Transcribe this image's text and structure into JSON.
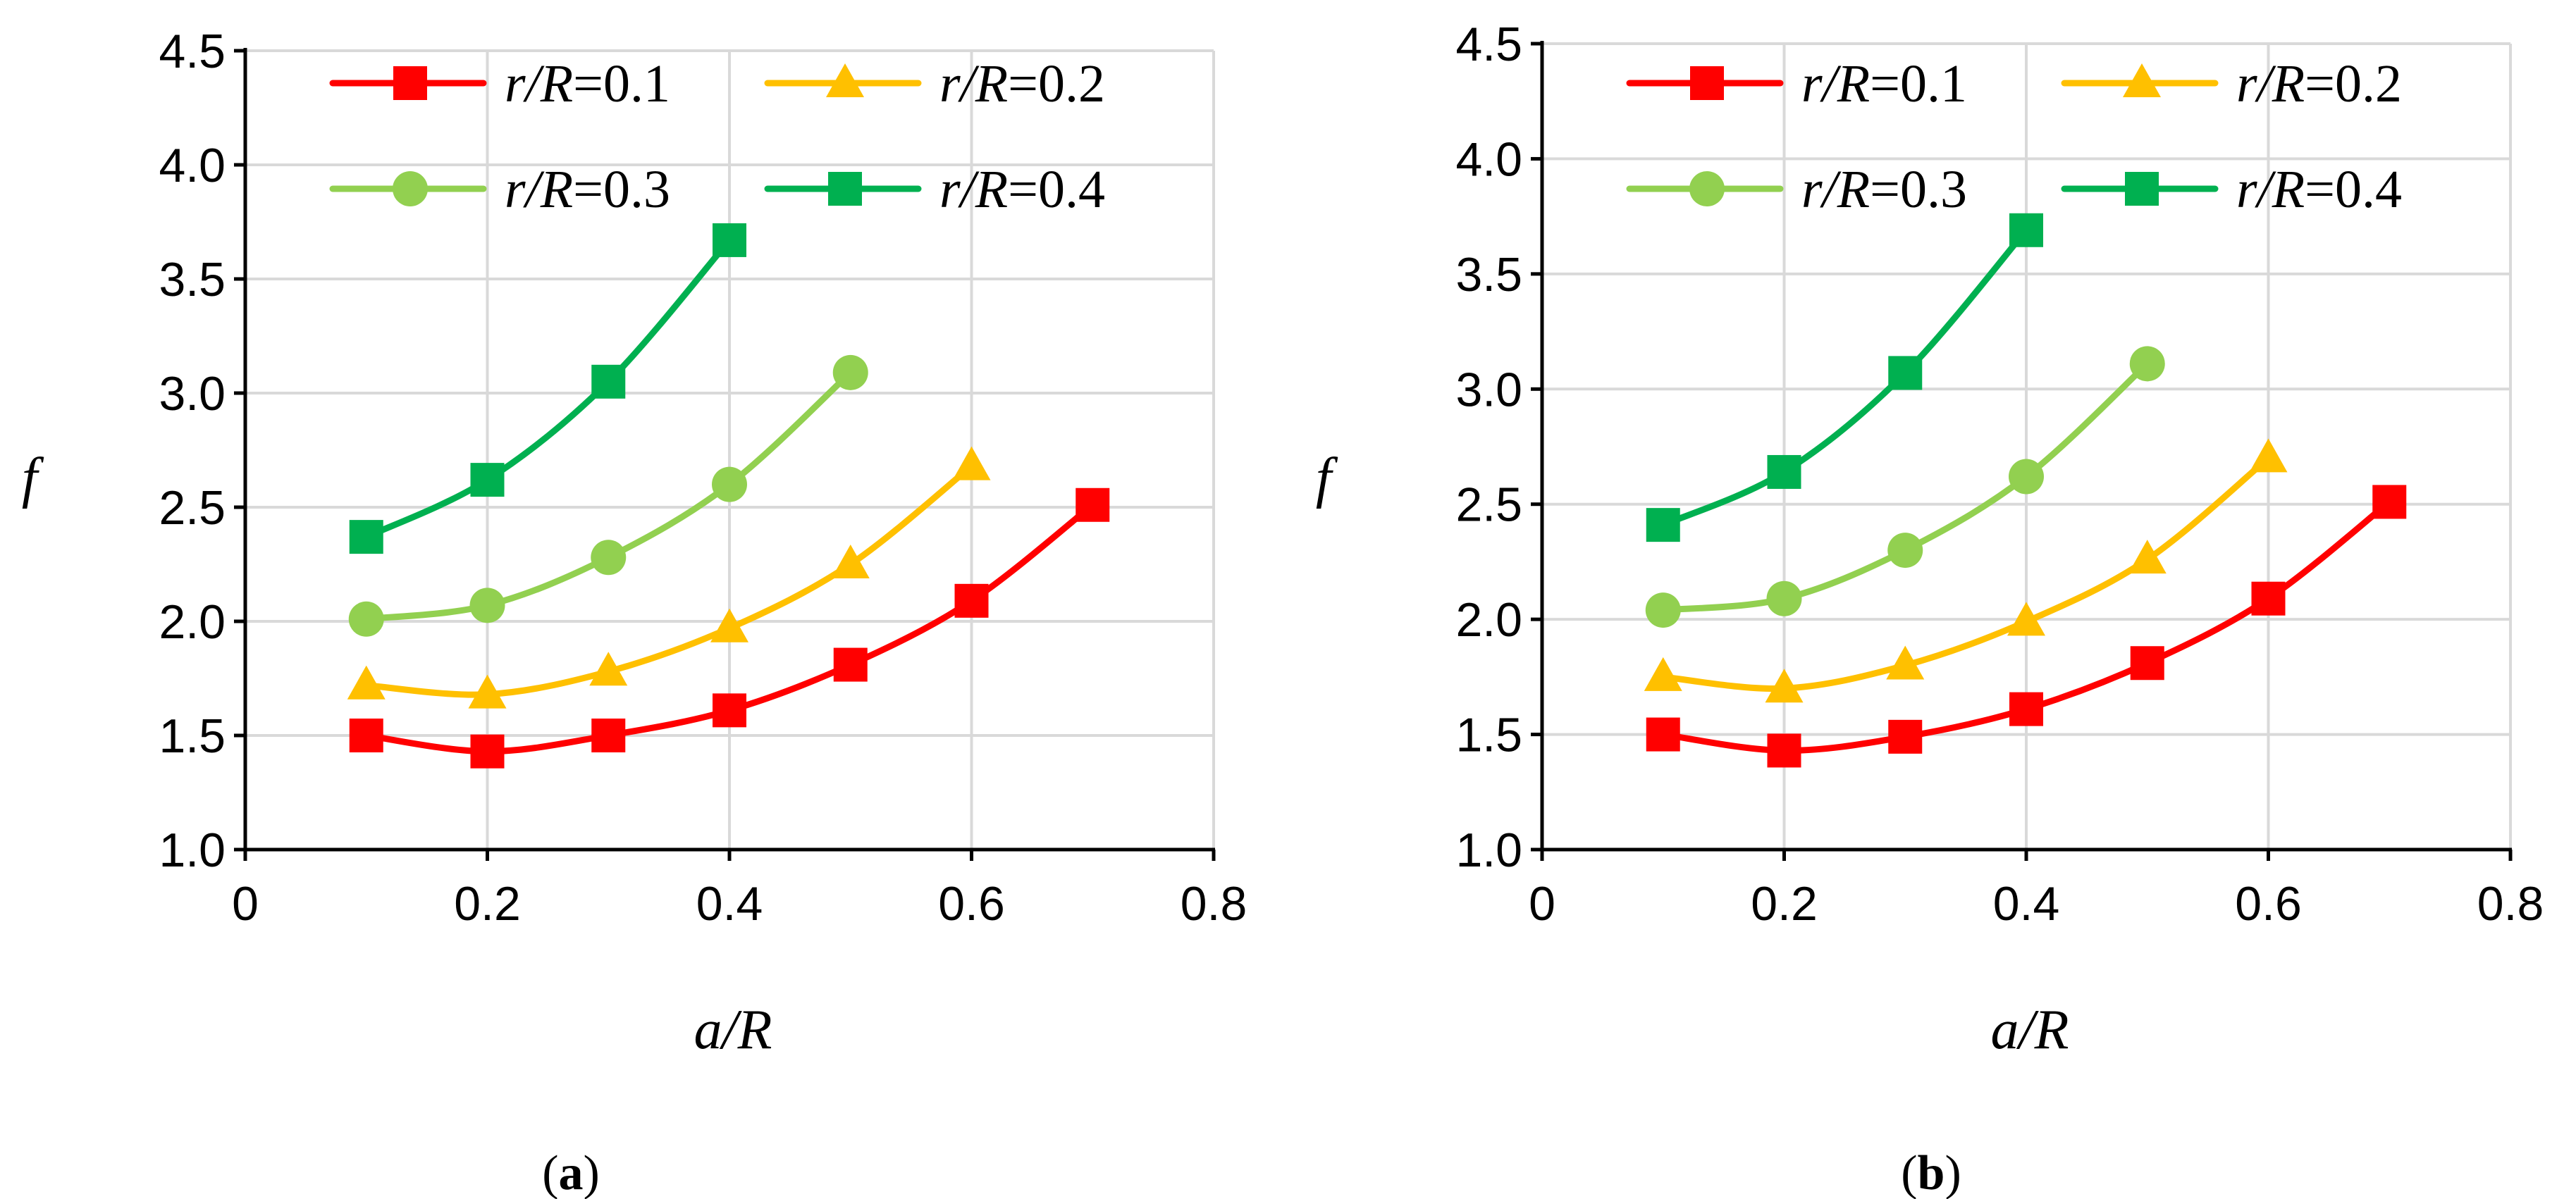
{
  "chart_data": [
    {
      "type": "line",
      "panel": "a",
      "caption_open": "(",
      "caption_letter": "a",
      "caption_close": ")",
      "xlabel": "a/R",
      "ylabel": "f",
      "xlim": [
        0,
        0.8
      ],
      "ylim": [
        1.0,
        4.5
      ],
      "xticks": [
        0,
        0.2,
        0.4,
        0.6,
        0.8
      ],
      "xtick_labels": [
        "0",
        "0.2",
        "0.4",
        "0.6",
        "0.8"
      ],
      "yticks": [
        1.0,
        1.5,
        2.0,
        2.5,
        3.0,
        3.5,
        4.0,
        4.5
      ],
      "ytick_labels": [
        "1.0",
        "1.5",
        "2.0",
        "2.5",
        "3.0",
        "3.5",
        "4.0",
        "4.5"
      ],
      "grid": true,
      "legend_position": "top",
      "series": [
        {
          "name": "r/R=0.1",
          "name_var": "r/R",
          "name_val": "=0.1",
          "color": "#ff0000",
          "marker": "square",
          "x": [
            0.1,
            0.2,
            0.3,
            0.4,
            0.5,
            0.6,
            0.7
          ],
          "y": [
            1.5,
            1.43,
            1.5,
            1.61,
            1.81,
            2.09,
            2.51
          ]
        },
        {
          "name": "r/R=0.2",
          "name_var": "r/R",
          "name_val": "=0.2",
          "color": "#ffc000",
          "marker": "triangle",
          "x": [
            0.1,
            0.2,
            0.3,
            0.4,
            0.5,
            0.6
          ],
          "y": [
            1.72,
            1.68,
            1.78,
            1.97,
            2.25,
            2.68
          ]
        },
        {
          "name": "r/R=0.3",
          "name_var": "r/R",
          "name_val": "=0.3",
          "color": "#92d050",
          "marker": "circle",
          "x": [
            0.1,
            0.2,
            0.3,
            0.4,
            0.5
          ],
          "y": [
            2.01,
            2.07,
            2.28,
            2.6,
            3.09
          ]
        },
        {
          "name": "r/R=0.4",
          "name_var": "r/R",
          "name_val": "=0.4",
          "color": "#00b050",
          "marker": "square",
          "x": [
            0.1,
            0.2,
            0.3,
            0.4
          ],
          "y": [
            2.37,
            2.62,
            3.05,
            3.67
          ]
        }
      ]
    },
    {
      "type": "line",
      "panel": "b",
      "caption_open": "(",
      "caption_letter": "b",
      "caption_close": ")",
      "xlabel": "a/R",
      "ylabel": "f",
      "xlim": [
        0,
        0.8
      ],
      "ylim": [
        1.0,
        4.5
      ],
      "xticks": [
        0,
        0.2,
        0.4,
        0.6,
        0.8
      ],
      "xtick_labels": [
        "0",
        "0.2",
        "0.4",
        "0.6",
        "0.8"
      ],
      "yticks": [
        1.0,
        1.5,
        2.0,
        2.5,
        3.0,
        3.5,
        4.0,
        4.5
      ],
      "ytick_labels": [
        "1.0",
        "1.5",
        "2.0",
        "2.5",
        "3.0",
        "3.5",
        "4.0",
        "4.5"
      ],
      "grid": true,
      "legend_position": "top",
      "series": [
        {
          "name": "r/R=0.1",
          "name_var": "r/R",
          "name_val": "=0.1",
          "color": "#ff0000",
          "marker": "square",
          "x": [
            0.1,
            0.2,
            0.3,
            0.4,
            0.5,
            0.6,
            0.7
          ],
          "y": [
            1.5,
            1.43,
            1.49,
            1.61,
            1.81,
            2.09,
            2.51
          ]
        },
        {
          "name": "r/R=0.2",
          "name_var": "r/R",
          "name_val": "=0.2",
          "color": "#ffc000",
          "marker": "triangle",
          "x": [
            0.1,
            0.2,
            0.3,
            0.4,
            0.5,
            0.6
          ],
          "y": [
            1.75,
            1.7,
            1.8,
            1.99,
            2.26,
            2.7
          ]
        },
        {
          "name": "r/R=0.3",
          "name_var": "r/R",
          "name_val": "=0.3",
          "color": "#92d050",
          "marker": "circle",
          "x": [
            0.1,
            0.2,
            0.3,
            0.4,
            0.5
          ],
          "y": [
            2.04,
            2.09,
            2.3,
            2.62,
            3.11
          ]
        },
        {
          "name": "r/R=0.4",
          "name_var": "r/R",
          "name_val": "=0.4",
          "color": "#00b050",
          "marker": "square",
          "x": [
            0.1,
            0.2,
            0.3,
            0.4
          ],
          "y": [
            2.41,
            2.64,
            3.07,
            3.69
          ]
        }
      ]
    }
  ]
}
